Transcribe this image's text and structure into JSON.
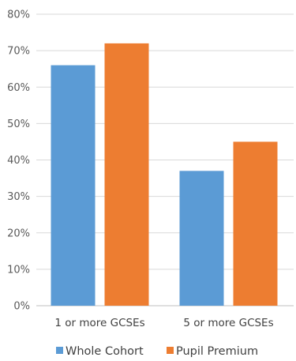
{
  "chart_data": {
    "type": "bar",
    "title": "",
    "xlabel": "",
    "ylabel": "",
    "categories": [
      "1 or more GCSEs",
      "5 or more GCSEs"
    ],
    "series": [
      {
        "name": "Whole Cohort",
        "values": [
          66,
          37
        ],
        "color": "#5b9bd5"
      },
      {
        "name": "Pupil Premium",
        "values": [
          72,
          45
        ],
        "color": "#ed7d31"
      }
    ],
    "ylim": [
      0,
      80
    ],
    "y_ticks": [
      "0%",
      "10%",
      "20%",
      "30%",
      "40%",
      "50%",
      "60%",
      "70%",
      "80%"
    ],
    "y_tick_values": [
      0,
      10,
      20,
      30,
      40,
      50,
      60,
      70,
      80
    ],
    "grid": true,
    "legend_position": "bottom"
  }
}
